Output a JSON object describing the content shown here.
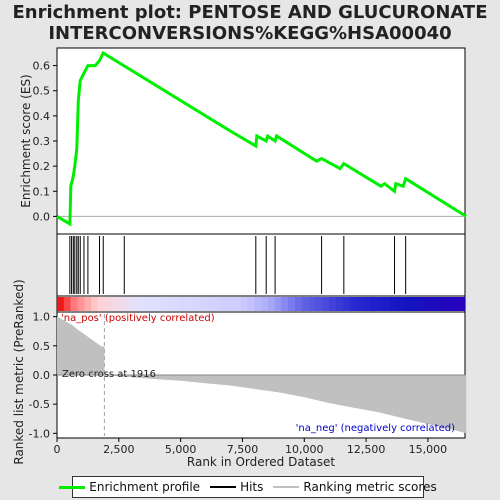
{
  "title_line1": "Enrichment plot: PENTOSE AND GLUCURONATE",
  "title_line2": "INTERCONVERSIONS%KEGG%HSA00040",
  "colors": {
    "enrichment_line": "#00ee00",
    "hits": "#000000",
    "metric_fill": "#c0c0c0",
    "pos_label": "#cc0000",
    "neg_label": "#0000cc",
    "zero_cross_line": "#a0a0a0"
  },
  "legend": {
    "enrichment_profile": "Enrichment profile",
    "hits": "Hits",
    "ranking_metric_scores": "Ranking metric scores"
  },
  "chart_data": [
    {
      "type": "line",
      "name": "enrichment-profile",
      "ylabel": "Enrichment score (ES)",
      "xlim": [
        0,
        16500
      ],
      "ylim": [
        -0.07,
        0.67
      ],
      "yticks": [
        0.0,
        0.1,
        0.2,
        0.3,
        0.4,
        0.5,
        0.6
      ],
      "ytick_labels": [
        "0.0",
        "0.1",
        "0.2",
        "0.3",
        "0.4",
        "0.5",
        "0.6"
      ],
      "x": [
        0,
        520,
        560,
        660,
        720,
        800,
        860,
        940,
        1090,
        1250,
        1550,
        1720,
        1820,
        1870,
        7000,
        8040,
        8080,
        8460,
        8520,
        8820,
        8880,
        10500,
        10700,
        11450,
        11600,
        13100,
        13250,
        13650,
        13700,
        14000,
        14100,
        16550
      ],
      "y": [
        0.0,
        -0.03,
        0.12,
        0.16,
        0.2,
        0.27,
        0.46,
        0.54,
        0.57,
        0.6,
        0.6,
        0.62,
        0.64,
        0.65,
        0.34,
        0.28,
        0.32,
        0.3,
        0.32,
        0.3,
        0.32,
        0.22,
        0.23,
        0.19,
        0.21,
        0.12,
        0.13,
        0.1,
        0.13,
        0.12,
        0.15,
        0.0
      ]
    },
    {
      "type": "hits",
      "name": "gene-hits",
      "x": [
        520,
        590,
        660,
        720,
        800,
        860,
        940,
        1090,
        1250,
        1720,
        1870,
        2720,
        8040,
        8460,
        8820,
        10700,
        11600,
        13650,
        14100
      ]
    },
    {
      "type": "area",
      "name": "ranking-metric",
      "xlabel": "Rank in Ordered Dataset",
      "ylabel": "Ranked list metric (PreRanked)",
      "xlim": [
        0,
        16500
      ],
      "ylim": [
        -1.08,
        1.08
      ],
      "xticks": [
        0,
        2500,
        5000,
        7500,
        10000,
        12500,
        15000
      ],
      "xtick_labels": [
        "0",
        "2,500",
        "5,000",
        "7,500",
        "10,000",
        "12,500",
        "15,000"
      ],
      "yticks": [
        1.0,
        0.5,
        0.0,
        -0.5,
        -1.0
      ],
      "ytick_labels": [
        "1.0",
        "0.5",
        "0.0",
        "-0.5",
        "-1.0"
      ],
      "x": [
        0,
        100,
        300,
        600,
        900,
        1200,
        1500,
        1800,
        1916,
        2500,
        3000,
        4000,
        5000,
        6000,
        7000,
        8000,
        9000,
        10000,
        11000,
        12000,
        13000,
        14000,
        15000,
        16000,
        16550
      ],
      "y": [
        1.0,
        0.98,
        0.93,
        0.86,
        0.76,
        0.67,
        0.58,
        0.49,
        0.0,
        -0.02,
        -0.04,
        -0.07,
        -0.1,
        -0.14,
        -0.18,
        -0.24,
        -0.3,
        -0.38,
        -0.48,
        -0.56,
        -0.64,
        -0.74,
        -0.84,
        -0.94,
        -1.0
      ],
      "zero_cross_rank": 1916,
      "zero_cross_label": "Zero cross at 1916",
      "pos_label": "'na_pos' (positively correlated)",
      "neg_label": "'na_neg' (negatively correlated)"
    }
  ]
}
